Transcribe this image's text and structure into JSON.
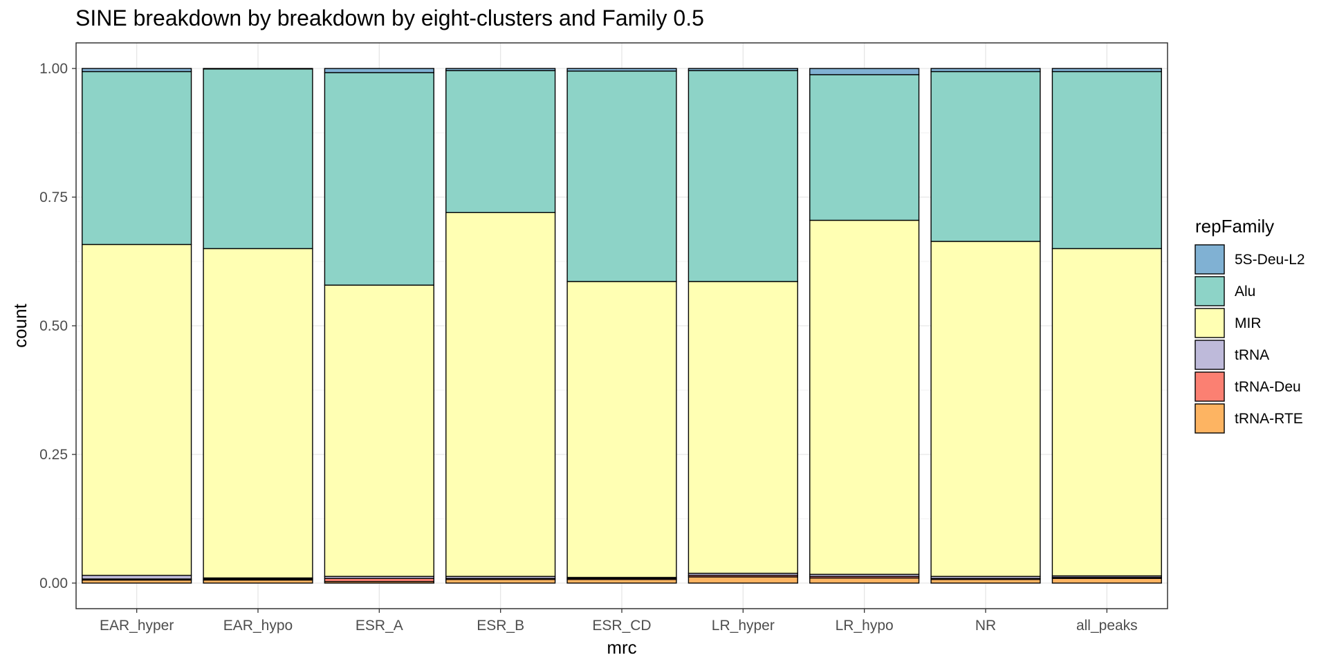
{
  "chart_data": {
    "type": "bar",
    "stacked": true,
    "title": "SINE breakdown by breakdown by eight-clusters and Family 0.5",
    "xlabel": "mrc",
    "ylabel": "count",
    "ylim": [
      0,
      1.05
    ],
    "yticks": [
      0.0,
      0.25,
      0.5,
      0.75,
      1.0
    ],
    "ytick_labels": [
      "0.00",
      "0.25",
      "0.50",
      "0.75",
      "1.00"
    ],
    "grid": true,
    "legend_title": "repFamily",
    "legend_position": "right",
    "categories": [
      "EAR_hyper",
      "EAR_hypo",
      "ESR_A",
      "ESR_B",
      "ESR_CD",
      "LR_hyper",
      "LR_hypo",
      "NR",
      "all_peaks"
    ],
    "series": [
      {
        "name": "5S-Deu-L2",
        "color": "#80b1d3",
        "values": [
          0.006,
          0.001,
          0.008,
          0.004,
          0.005,
          0.004,
          0.012,
          0.006,
          0.006
        ]
      },
      {
        "name": "Alu",
        "color": "#8dd3c7",
        "values": [
          0.336,
          0.349,
          0.413,
          0.276,
          0.409,
          0.41,
          0.283,
          0.33,
          0.344
        ]
      },
      {
        "name": "MIR",
        "color": "#ffffb3",
        "values": [
          0.643,
          0.64,
          0.566,
          0.707,
          0.575,
          0.567,
          0.688,
          0.651,
          0.636
        ]
      },
      {
        "name": "tRNA",
        "color": "#bebada",
        "values": [
          0.007,
          0.002,
          0.004,
          0.004,
          0.002,
          0.004,
          0.004,
          0.004,
          0.003
        ]
      },
      {
        "name": "tRNA-Deu",
        "color": "#fb8072",
        "values": [
          0.002,
          0.002,
          0.006,
          0.002,
          0.002,
          0.003,
          0.003,
          0.002,
          0.002
        ]
      },
      {
        "name": "tRNA-RTE",
        "color": "#fdb462",
        "values": [
          0.006,
          0.006,
          0.003,
          0.007,
          0.007,
          0.012,
          0.01,
          0.007,
          0.009
        ]
      }
    ]
  }
}
